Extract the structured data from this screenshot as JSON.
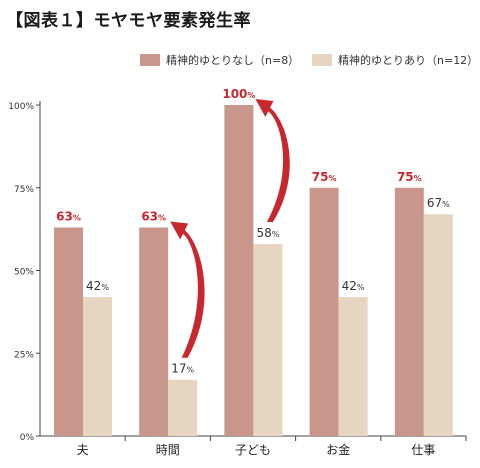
{
  "chart_data": {
    "type": "bar",
    "title": "【図表１】モヤモヤ要素発生率",
    "categories": [
      "夫",
      "時間",
      "子ども",
      "お金",
      "仕事"
    ],
    "series": [
      {
        "name": "精神的ゆとりなし（n=8）",
        "color": "#c9968b",
        "values": [
          63,
          63,
          100,
          75,
          75
        ],
        "labels": [
          "63%",
          "63%",
          "100%",
          "75%",
          "75%"
        ]
      },
      {
        "name": "精神的ゆとりあり（n=12）",
        "color": "#e6d6c1",
        "values": [
          42,
          17,
          58,
          42,
          67
        ],
        "labels": [
          "42%",
          "17%",
          "58%",
          "42%",
          "67%"
        ]
      }
    ],
    "yticks": [
      "0%",
      "25%",
      "50%",
      "75%",
      "100%"
    ],
    "ylim": [
      0,
      100
    ],
    "legend_position": "top-right",
    "highlight_color": "#c8282d",
    "arrows": [
      {
        "from_category": "時間",
        "to_category": "時間",
        "from_value": 17,
        "to_value": 63
      },
      {
        "from_category": "子ども",
        "to_category": "子ども",
        "from_value": 58,
        "to_value": 100
      }
    ]
  }
}
